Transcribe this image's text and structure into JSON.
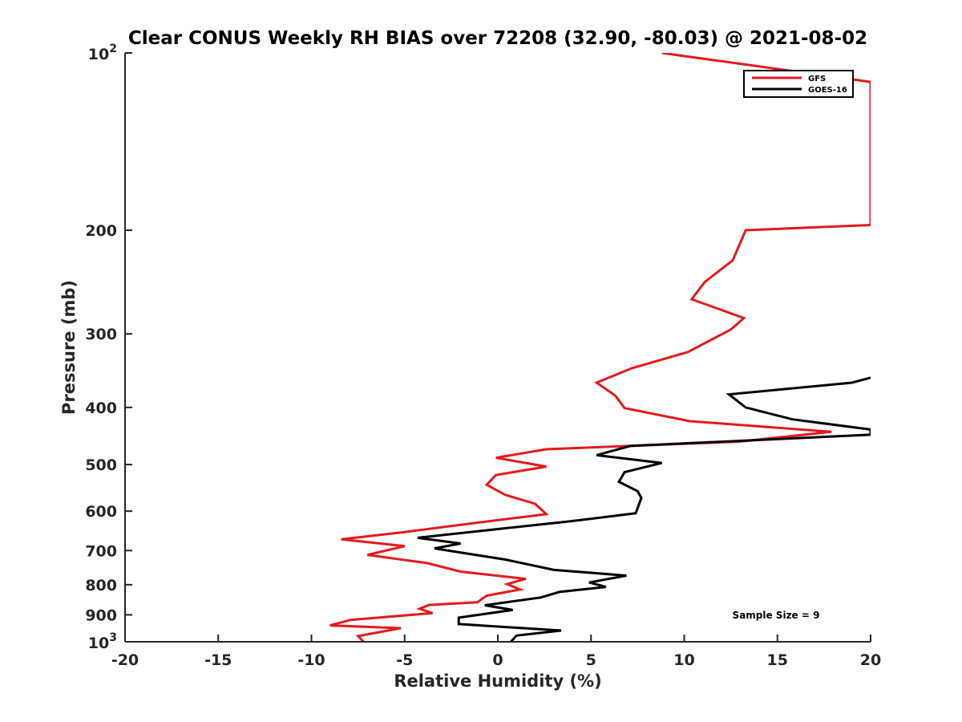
{
  "chart_data": {
    "type": "line",
    "title": "Clear CONUS Weekly RH BIAS over 72208 (32.90, -80.03) @ 2021-08-02",
    "xlabel": "Relative Humidity (%)",
    "ylabel": "Pressure (mb)",
    "xlim": [
      -20,
      20
    ],
    "ylim": [
      100,
      1000
    ],
    "y_scale": "log",
    "y_reversed": true,
    "grid": false,
    "legend_position": "top-right",
    "x_tick_labels": [
      "-20",
      "-15",
      "-10",
      "-5",
      "0",
      "5",
      "10",
      "15",
      "20"
    ],
    "y_ticks": [
      {
        "value": 100,
        "base": "10",
        "exp": "2"
      },
      {
        "value": 200,
        "label": "200"
      },
      {
        "value": 300,
        "label": "300"
      },
      {
        "value": 400,
        "label": "400"
      },
      {
        "value": 500,
        "label": "500"
      },
      {
        "value": 600,
        "label": "600"
      },
      {
        "value": 700,
        "label": "700"
      },
      {
        "value": 800,
        "label": "800"
      },
      {
        "value": 900,
        "label": "900"
      },
      {
        "value": 1000,
        "base": "10",
        "exp": "3"
      }
    ],
    "annotation": "Sample Size = 9",
    "series": [
      {
        "name": "GFS",
        "color": "#e41a1c",
        "points": [
          [
            8.8,
            100
          ],
          [
            20.0,
            112
          ],
          [
            20.0,
            196
          ],
          [
            13.3,
            200
          ],
          [
            12.6,
            225
          ],
          [
            11.1,
            245
          ],
          [
            10.4,
            262
          ],
          [
            13.2,
            282
          ],
          [
            12.5,
            295
          ],
          [
            10.2,
            322
          ],
          [
            7.2,
            343
          ],
          [
            5.3,
            363
          ],
          [
            6.3,
            382
          ],
          [
            6.8,
            401
          ],
          [
            10.3,
            422
          ],
          [
            17.9,
            440
          ],
          [
            13.0,
            457
          ],
          [
            2.6,
            471
          ],
          [
            -0.1,
            487
          ],
          [
            2.6,
            504
          ],
          [
            -0.1,
            521
          ],
          [
            -0.6,
            541
          ],
          [
            0.4,
            563
          ],
          [
            2.0,
            583
          ],
          [
            2.6,
            607
          ],
          [
            -1.0,
            627
          ],
          [
            -5.0,
            651
          ],
          [
            -8.4,
            670
          ],
          [
            -5.0,
            688
          ],
          [
            -7.0,
            712
          ],
          [
            -3.8,
            735
          ],
          [
            -2.0,
            760
          ],
          [
            1.5,
            782
          ],
          [
            0.5,
            798
          ],
          [
            1.2,
            815
          ],
          [
            -0.6,
            835
          ],
          [
            -1.1,
            857
          ],
          [
            -3.7,
            866
          ],
          [
            -4.2,
            879
          ],
          [
            -3.5,
            894
          ],
          [
            -7.9,
            918
          ],
          [
            -9.0,
            938
          ],
          [
            -5.2,
            948
          ],
          [
            -7.5,
            978
          ],
          [
            -7.2,
            1000
          ]
        ]
      },
      {
        "name": "GOES-16",
        "color": "#000000",
        "points": [
          [
            20.0,
            356
          ],
          [
            19.0,
            363
          ],
          [
            12.4,
            380
          ],
          [
            13.3,
            400
          ],
          [
            15.8,
            419
          ],
          [
            20.0,
            436
          ],
          [
            20.0,
            445
          ],
          [
            7.1,
            465
          ],
          [
            5.3,
            482
          ],
          [
            8.8,
            497
          ],
          [
            6.8,
            515
          ],
          [
            6.5,
            535
          ],
          [
            7.5,
            555
          ],
          [
            7.7,
            570
          ],
          [
            7.4,
            605
          ],
          [
            3.9,
            624
          ],
          [
            -4.3,
            666
          ],
          [
            -2.0,
            681
          ],
          [
            -3.4,
            694
          ],
          [
            0.4,
            725
          ],
          [
            3.0,
            755
          ],
          [
            6.9,
            772
          ],
          [
            4.9,
            793
          ],
          [
            5.8,
            807
          ],
          [
            3.3,
            823
          ],
          [
            2.3,
            841
          ],
          [
            -0.7,
            867
          ],
          [
            0.8,
            883
          ],
          [
            -2.1,
            910
          ],
          [
            -2.1,
            933
          ],
          [
            3.4,
            957
          ],
          [
            1.0,
            976
          ],
          [
            0.7,
            1000
          ]
        ]
      }
    ]
  }
}
